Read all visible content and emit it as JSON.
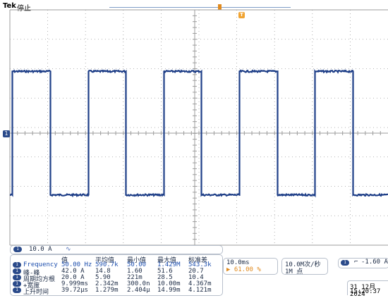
{
  "header": {
    "brand": "Tek",
    "state": "停止",
    "trigger_marker": "T"
  },
  "channel_marker": "1",
  "channel1": {
    "badge": "1",
    "scale": "10.0 A",
    "bw_icon": "bandwidth-limit-icon"
  },
  "measurements": {
    "headers": [
      "值",
      "平均值",
      "最小值",
      "最大值",
      "标准差"
    ],
    "rows": [
      {
        "name": "Frequency",
        "value": "50.00 Hz",
        "mean": "590.7k",
        "min": "50.00",
        "max": "1.429M",
        "std": "543.3k"
      },
      {
        "name": "峰-峰",
        "value": "42.0 A",
        "mean": "14.8",
        "min": "1.60",
        "max": "51.6",
        "std": "20.7"
      },
      {
        "name": "周期均方根",
        "value": "20.0 A",
        "mean": "5.90",
        "min": "221m",
        "max": "28.5",
        "std": "10.4"
      },
      {
        "name": "+宽度",
        "value": "9.999ms",
        "mean": "2.342m",
        "min": "300.0n",
        "max": "10.00m",
        "std": "4.367m"
      },
      {
        "name": "上升时间",
        "value": "39.72µs",
        "mean": "1.279m",
        "min": "2.404µ",
        "max": "14.99m",
        "std": "4.121m"
      }
    ]
  },
  "timebase": {
    "scale": "10.0ms",
    "position": "61.00 %"
  },
  "acquisition": {
    "rate": "10.0M次/秒",
    "record": "1M 点"
  },
  "trigger": {
    "badge": "1",
    "slope_icon": "rising-edge-icon",
    "level": "-1.60 A"
  },
  "datetime": {
    "date": "31 12月 2024",
    "time": "15:20:37"
  },
  "colors": {
    "trace": "#1f3f88",
    "grid": "#9c9c9c",
    "accent": "#e08a1e"
  },
  "waveform": {
    "frequency_hz": 50,
    "high_a": 21,
    "low_a": -21
  }
}
